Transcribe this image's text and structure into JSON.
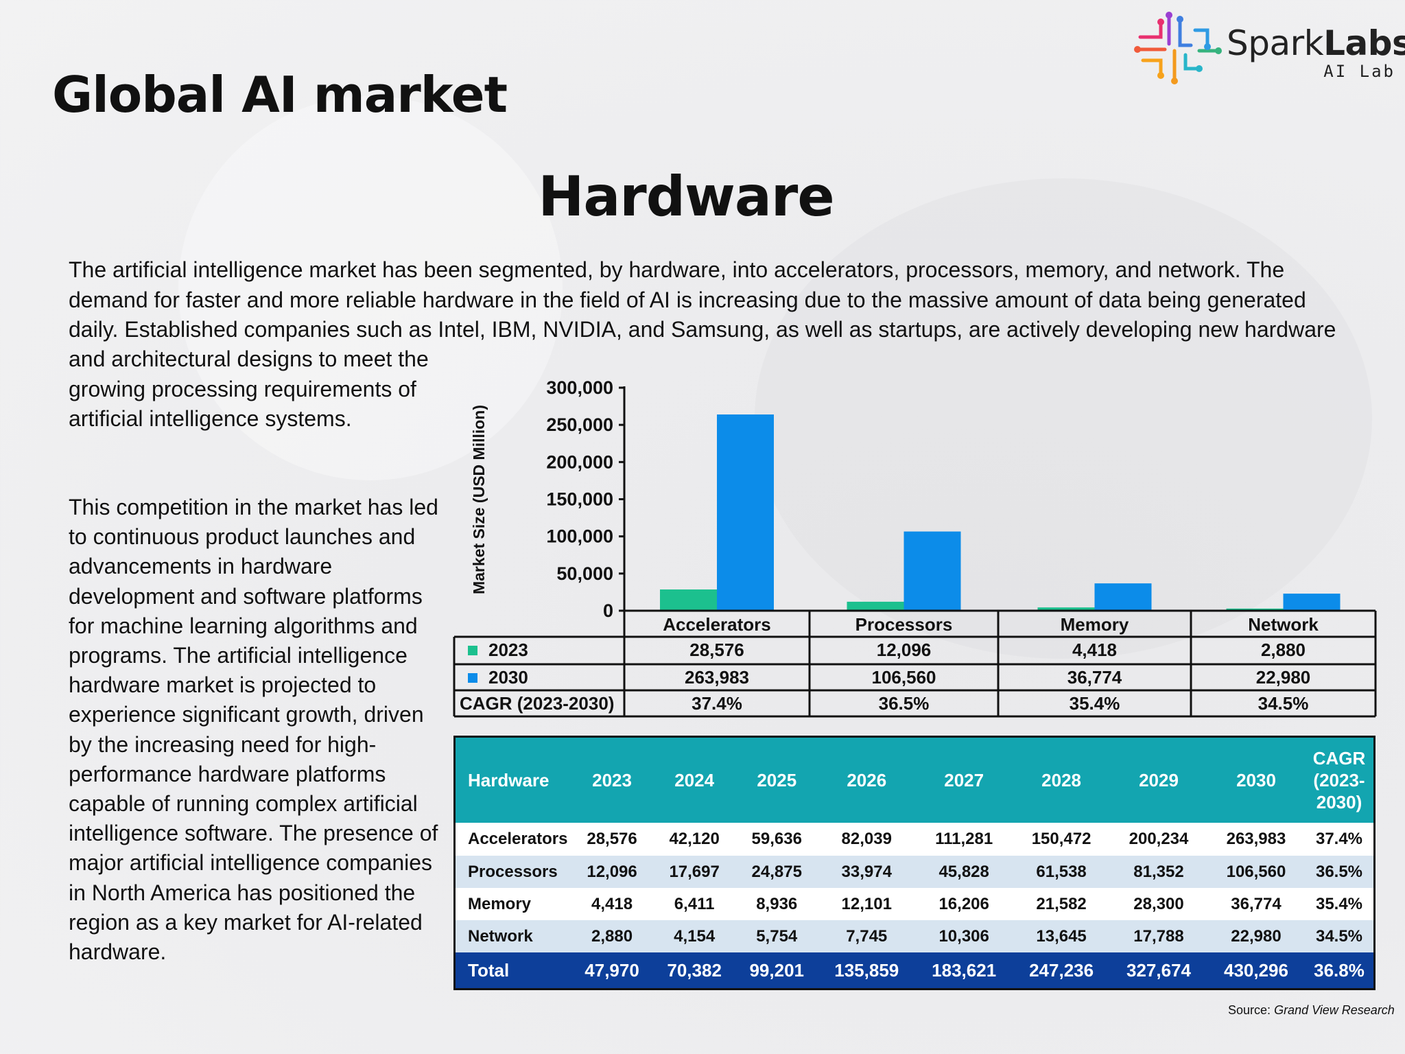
{
  "logo": {
    "name_light": "Spark",
    "name_bold": "Labs",
    "subtitle": "AI Lab"
  },
  "page_title": "Global AI market",
  "section_title": "Hardware",
  "intro_text": "The artificial intelligence market has been segmented, by hardware, into accelerators, processors, memory, and network. The demand for faster and more reliable hardware in the field of AI is increasing due to the massive amount of data being generated daily. Established companies such as Intel, IBM, NVIDIA, and Samsung, as well as startups, are actively developing new hardware",
  "intro_text_cont": "and architectural designs to meet the growing processing requirements of artificial intelligence systems.",
  "paragraph2": "This competition in the market has led to continuous product launches and advancements in hardware development and software platforms for machine learning algorithms and programs. The artificial intelligence hardware market is projected to experience significant growth, driven by the increasing need for high-performance hardware platforms capable of running complex artificial intelligence software. The presence of major artificial intelligence companies in North America has positioned the region as a key market for AI-related hardware.",
  "chart_data": {
    "type": "bar",
    "categories": [
      "Accelerators",
      "Processors",
      "Memory",
      "Network"
    ],
    "ylabel": "Market Size (USD Million)",
    "ylim": [
      0,
      300000
    ],
    "yticks": [
      "0",
      "50,000",
      "100,000",
      "150,000",
      "200,000",
      "250,000",
      "300,000"
    ],
    "grid": false,
    "series": [
      {
        "name": "2023",
        "color": "#1cc08e",
        "values": [
          28576,
          12096,
          4418,
          2880
        ],
        "labels": [
          "28,576",
          "12,096",
          "4,418",
          "2,880"
        ]
      },
      {
        "name": "2030",
        "color": "#0c8ce9",
        "values": [
          263983,
          106560,
          36774,
          22980
        ],
        "labels": [
          "263,983",
          "106,560",
          "36,774",
          "22,980"
        ]
      }
    ],
    "cagr_label": "CAGR (2023-2030)",
    "cagr": [
      "37.4%",
      "36.5%",
      "35.4%",
      "34.5%"
    ]
  },
  "table": {
    "header_first": "Hardware",
    "years": [
      "2023",
      "2024",
      "2025",
      "2026",
      "2027",
      "2028",
      "2029",
      "2030"
    ],
    "cagr_header": [
      "CAGR",
      "(2023-",
      "2030)"
    ],
    "rows": [
      {
        "label": "Accelerators",
        "values": [
          "28,576",
          "42,120",
          "59,636",
          "82,039",
          "111,281",
          "150,472",
          "200,234",
          "263,983"
        ],
        "cagr": "37.4%"
      },
      {
        "label": "Processors",
        "values": [
          "12,096",
          "17,697",
          "24,875",
          "33,974",
          "45,828",
          "61,538",
          "81,352",
          "106,560"
        ],
        "cagr": "36.5%"
      },
      {
        "label": "Memory",
        "values": [
          "4,418",
          "6,411",
          "8,936",
          "12,101",
          "16,206",
          "21,582",
          "28,300",
          "36,774"
        ],
        "cagr": "35.4%"
      },
      {
        "label": "Network",
        "values": [
          "2,880",
          "4,154",
          "5,754",
          "7,745",
          "10,306",
          "13,645",
          "17,788",
          "22,980"
        ],
        "cagr": "34.5%"
      }
    ],
    "total": {
      "label": "Total",
      "values": [
        "47,970",
        "70,382",
        "99,201",
        "135,859",
        "183,621",
        "247,236",
        "327,674",
        "430,296"
      ],
      "cagr": "36.8%"
    }
  },
  "source": {
    "label": "Source:",
    "name": "Grand View Research"
  },
  "colors": {
    "teal_header": "#13a5b0",
    "total_row": "#0d3f9a",
    "row_alt": "#d7e4f0"
  }
}
